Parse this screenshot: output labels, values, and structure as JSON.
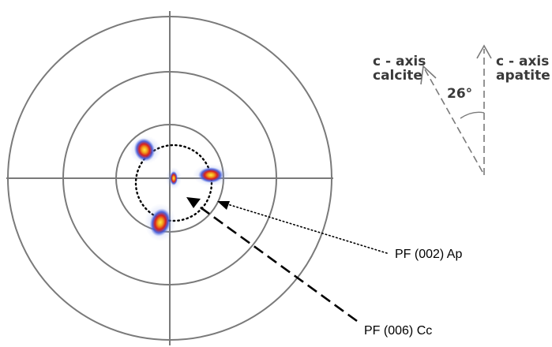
{
  "pole_figure": {
    "pf_002_label": "PF (002) Ap",
    "pf_006_label": "PF (006) Cc",
    "spot_colors": {
      "outer": "#4a63d6",
      "mid": "#e02020",
      "core": "#ffd21a"
    }
  },
  "axis_diagram": {
    "calcite_line1": "c - axis",
    "calcite_line2": "calcite",
    "apatite_line1": "c - axis",
    "apatite_line2": "apatite",
    "angle_label": "26°"
  }
}
